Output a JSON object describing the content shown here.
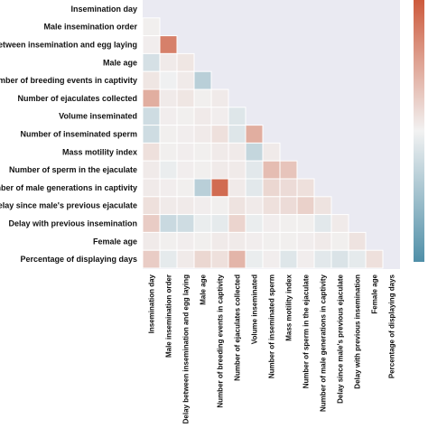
{
  "chart_data": {
    "type": "heatmap",
    "title": "",
    "xlabel": "",
    "ylabel": "",
    "labels": [
      "Insemination day",
      "Male insemination order",
      "Delay between insemination and egg laying",
      "Male age",
      "Number of breeding events in captivity",
      "Number of ejaculates collected",
      "Volume inseminated",
      "Number of inseminated sperm",
      "Mass motility index",
      "Number of sperm in the ejaculate",
      "Number of male generations in captivity",
      "Delay since male's previous ejaculate",
      "Delay with previous insemination",
      "Female age",
      "Percentage of displaying days"
    ],
    "matrix_lower_triangle": [
      [],
      [
        0.02
      ],
      [
        0.03,
        0.75
      ],
      [
        -0.18,
        0.05,
        0.08
      ],
      [
        0.08,
        -0.02,
        0.05,
        -0.35
      ],
      [
        0.45,
        0.05,
        0.08,
        0.02,
        0.05
      ],
      [
        -0.22,
        0.03,
        0.02,
        0.05,
        0.03,
        -0.12
      ],
      [
        -0.22,
        0.02,
        0.03,
        0.05,
        0.12,
        -0.12,
        0.45
      ],
      [
        0.12,
        0.02,
        0.03,
        0.02,
        0.05,
        0.05,
        -0.28,
        0.05
      ],
      [
        0.05,
        -0.05,
        0.03,
        0.02,
        0.05,
        0.05,
        -0.1,
        0.35,
        0.3
      ],
      [
        0.05,
        0.03,
        0.02,
        -0.35,
        0.88,
        0.05,
        -0.1,
        0.18,
        0.15,
        0.12
      ],
      [
        0.12,
        0.05,
        0.05,
        0.03,
        0.02,
        0.1,
        0.05,
        0.12,
        0.15,
        0.22,
        0.1
      ],
      [
        0.25,
        -0.25,
        -0.22,
        -0.05,
        -0.08,
        0.2,
        -0.05,
        0.03,
        0.02,
        0.02,
        -0.1,
        0.05
      ],
      [
        0.05,
        0.02,
        0.03,
        0.02,
        0.05,
        0.05,
        0.03,
        0.02,
        0.02,
        0.03,
        0.05,
        0.02,
        0.1
      ],
      [
        0.25,
        -0.08,
        0.05,
        0.18,
        0.12,
        0.4,
        -0.05,
        0.03,
        -0.12,
        0.03,
        -0.1,
        -0.15,
        -0.08,
        0.12
      ]
    ],
    "value_range": [
      -1,
      1
    ],
    "colormap": {
      "negative": "#4f8fa8",
      "center": "#f2f2f2",
      "positive": "#cd5a3c"
    },
    "masked_cell_color": "#eaeaf2",
    "colorbar": true
  }
}
